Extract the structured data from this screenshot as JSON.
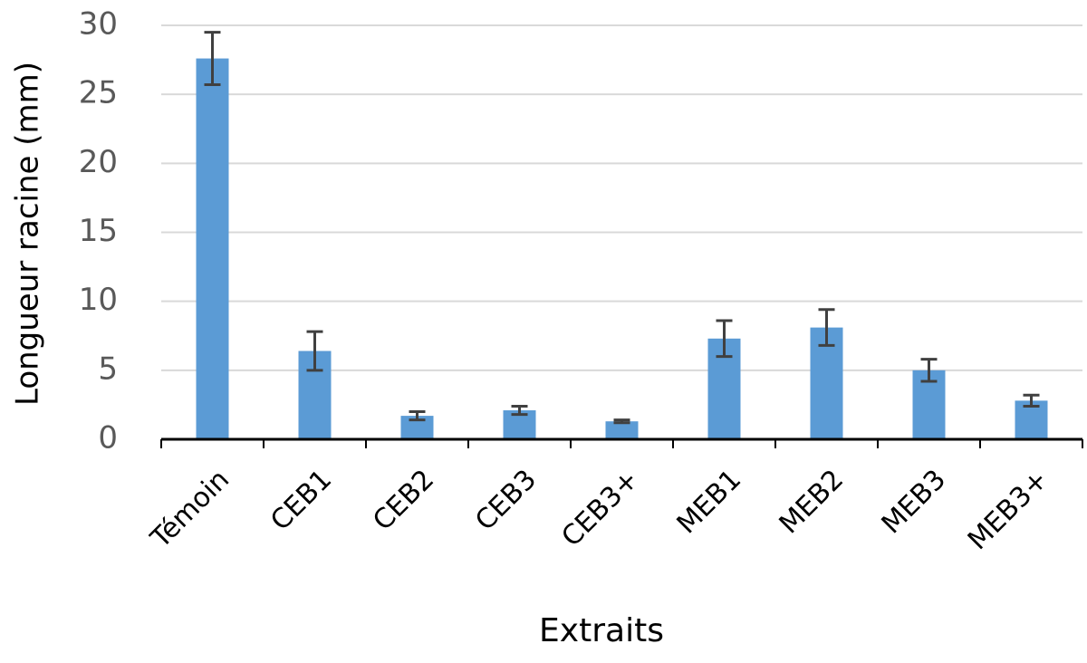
{
  "chart_data": {
    "type": "bar",
    "x_label": "Extraits",
    "y_label": "Longueur racine (mm)",
    "categories": [
      "Témoin",
      "CEB1",
      "CEB2",
      "CEB3",
      "CEB3+",
      "MEB1",
      "MEB2",
      "MEB3",
      "MEB3+"
    ],
    "values": [
      27.6,
      6.4,
      1.7,
      2.1,
      1.3,
      7.3,
      8.1,
      5.0,
      2.8
    ],
    "errors": [
      1.9,
      1.4,
      0.3,
      0.3,
      0.1,
      1.3,
      1.3,
      0.8,
      0.4
    ],
    "color": "#5b9bd5",
    "ylim": [
      0,
      30
    ],
    "yticks": [
      0,
      5,
      10,
      15,
      20,
      25,
      30
    ],
    "grid": true
  }
}
